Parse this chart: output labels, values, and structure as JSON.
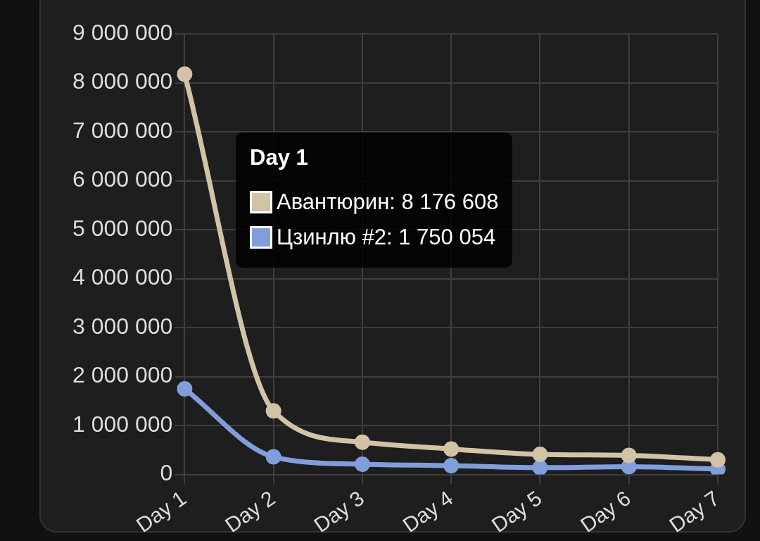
{
  "chart_data": {
    "type": "line",
    "categories": [
      "Day 1",
      "Day 2",
      "Day 3",
      "Day 4",
      "Day 5",
      "Day 6",
      "Day 7"
    ],
    "series": [
      {
        "color": "#d3c3a6",
        "values": [
          8176608,
          1300000,
          660000,
          520000,
          410000,
          390000,
          300000
        ]
      },
      {
        "color": "#7f9edb",
        "values": [
          1750054,
          360000,
          210000,
          180000,
          140000,
          160000,
          110000
        ]
      }
    ],
    "ylim": [
      0,
      9000000
    ],
    "yticks": [
      {
        "value": 0,
        "label": "0"
      },
      {
        "value": 1000000,
        "label": "1 000 000"
      },
      {
        "value": 2000000,
        "label": "2 000 000"
      },
      {
        "value": 3000000,
        "label": "3 000 000"
      },
      {
        "value": 4000000,
        "label": "4 000 000"
      },
      {
        "value": 5000000,
        "label": "5 000 000"
      },
      {
        "value": 6000000,
        "label": "6 000 000"
      },
      {
        "value": 7000000,
        "label": "7 000 000"
      },
      {
        "value": 8000000,
        "label": "8 000 000"
      },
      {
        "value": 9000000,
        "label": "9 000 000"
      }
    ],
    "grid": true,
    "marker": "circle",
    "line_style": "solid",
    "annotations": [
      "Day 1",
      "Авантюрин: 8 176 608",
      "Цзинлю #2: 1 750 054"
    ]
  }
}
